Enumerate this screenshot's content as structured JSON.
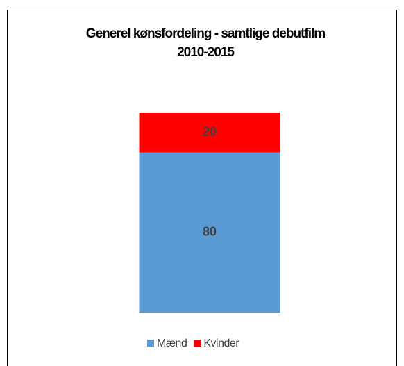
{
  "chart_data": {
    "type": "stacked_bar",
    "title": [
      "Generel kønsfordeling - samtlige debutfilm",
      "2010-2015"
    ],
    "categories": [
      null
    ],
    "series": [
      {
        "name": "Mænd",
        "color": "#5b9bd5",
        "values": [
          80
        ]
      },
      {
        "name": "Kvinder",
        "color": "#ff0000",
        "values": [
          20
        ]
      }
    ],
    "ylim": [
      0,
      100
    ],
    "legend": "bottom"
  }
}
